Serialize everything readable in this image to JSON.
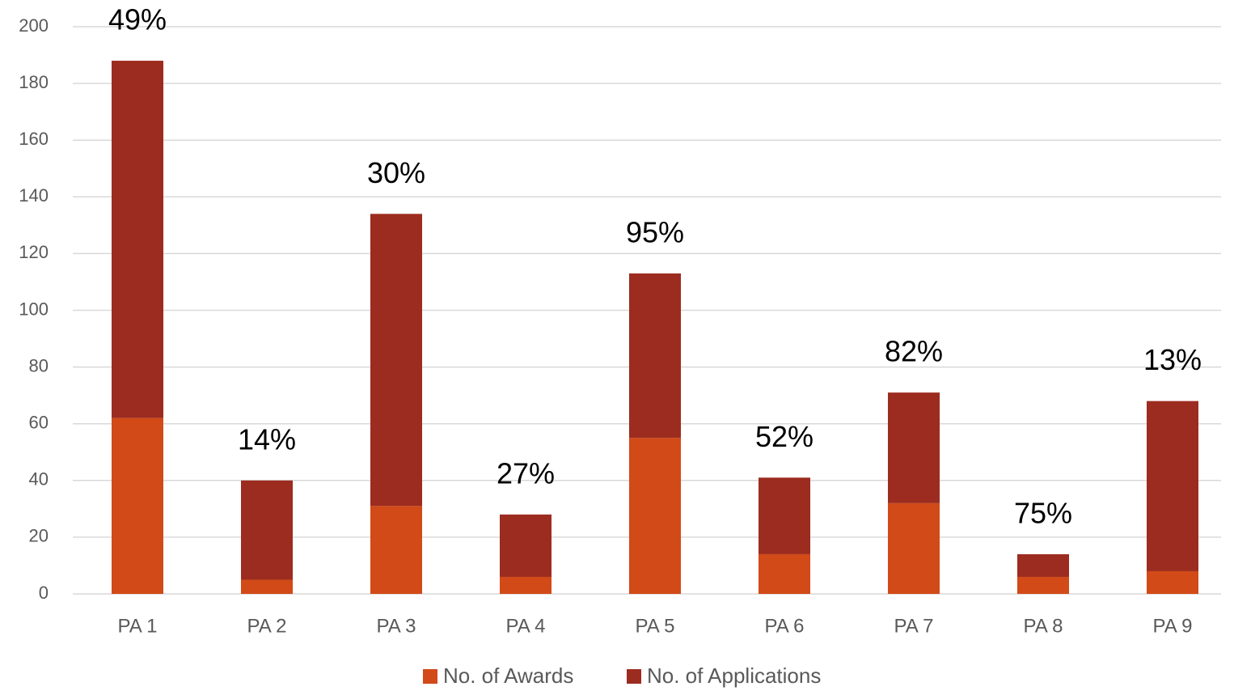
{
  "chart_data": {
    "type": "stacked_bar",
    "categories": [
      "PA 1",
      "PA 2",
      "PA 3",
      "PA 4",
      "PA 5",
      "PA 6",
      "PA 7",
      "PA 8",
      "PA 9"
    ],
    "series": [
      {
        "name": "No. of Awards",
        "color": "#d24a18",
        "values": [
          62,
          5,
          31,
          6,
          55,
          14,
          32,
          6,
          8
        ]
      },
      {
        "name": "No. of Applications",
        "color": "#9c2c1f",
        "values": [
          126,
          35,
          103,
          22,
          58,
          27,
          39,
          8,
          60
        ]
      }
    ],
    "annotations": [
      "49%",
      "14%",
      "30%",
      "27%",
      "95%",
      "52%",
      "82%",
      "75%",
      "13%"
    ],
    "ylim": [
      0,
      200
    ],
    "yticks": [
      0,
      20,
      40,
      60,
      80,
      100,
      120,
      140,
      160,
      180,
      200
    ],
    "grid": true,
    "legend": "bottom"
  }
}
